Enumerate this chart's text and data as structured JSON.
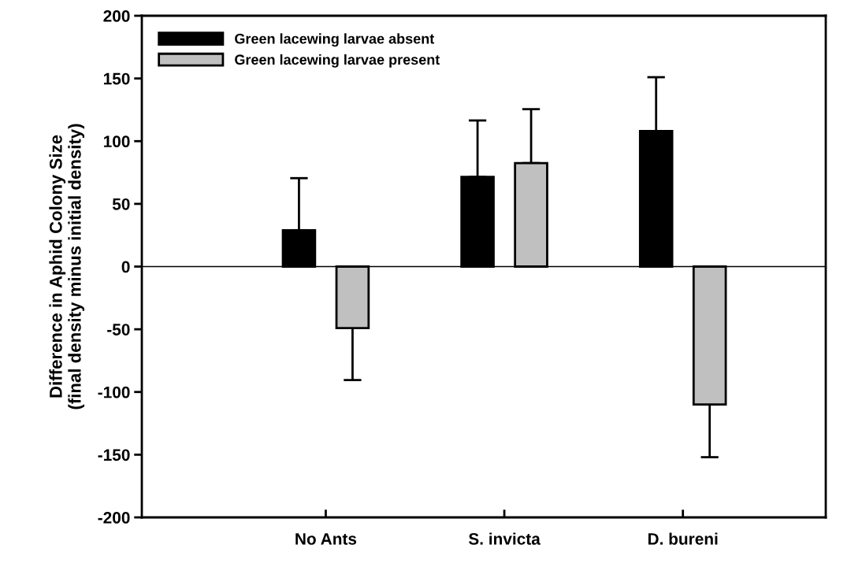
{
  "chart_data": {
    "type": "bar",
    "ylabel": "Difference in Aphid Colony Size\n(final density minus initial density)",
    "categories": [
      "No Ants",
      "S. invicta",
      "D. bureni"
    ],
    "series": [
      {
        "name": "Green lacewing larvae absent",
        "color": "#000000",
        "values": [
          29,
          71.5,
          108
        ],
        "errors": [
          [
            29,
            70.5
          ],
          [
            71.5,
            116.5
          ],
          [
            108,
            151
          ]
        ]
      },
      {
        "name": "Green lacewing larvae present",
        "color": "#c0c0c0",
        "values": [
          -49,
          82.5,
          -110
        ],
        "errors": [
          [
            -90.5,
            -49
          ],
          [
            82.5,
            125.5
          ],
          [
            -152,
            -110
          ]
        ]
      }
    ],
    "ylim": [
      -200,
      200
    ],
    "yticks": [
      -200,
      -150,
      -100,
      -50,
      0,
      50,
      100,
      150,
      200
    ],
    "ref_lines": [
      {
        "axis": "y",
        "value": 0,
        "label": null,
        "color": "#000000"
      }
    ],
    "grid": false,
    "legend": "top left"
  }
}
